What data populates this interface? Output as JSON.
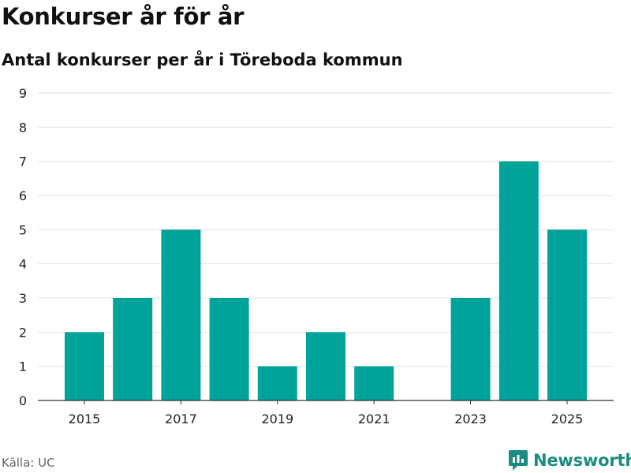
{
  "header": {
    "title": "Konkurser år för år",
    "subtitle": "Antal konkurser per år i Töreboda kommun"
  },
  "footer": {
    "source": "Källa: UC",
    "brand": "Newsworthy"
  },
  "colors": {
    "bar": "#00a399",
    "grid": "#e3e3e3",
    "axis": "#333333",
    "brand": "#1c8c82"
  },
  "chart_data": {
    "type": "bar",
    "title": "Konkurser år för år",
    "subtitle": "Antal konkurser per år i Töreboda kommun",
    "xlabel": "",
    "ylabel": "",
    "categories": [
      "2015",
      "2016",
      "2017",
      "2018",
      "2019",
      "2020",
      "2021",
      "2022",
      "2023",
      "2024",
      "2025"
    ],
    "values": [
      2,
      3,
      5,
      3,
      1,
      2,
      1,
      0,
      3,
      7,
      5
    ],
    "x_tick_labels": [
      "2015",
      "2017",
      "2019",
      "2021",
      "2023",
      "2025"
    ],
    "y_ticks": [
      0,
      1,
      2,
      3,
      4,
      5,
      6,
      7,
      8,
      9
    ],
    "ylim": [
      0,
      9
    ],
    "grid": true,
    "legend": "none"
  }
}
